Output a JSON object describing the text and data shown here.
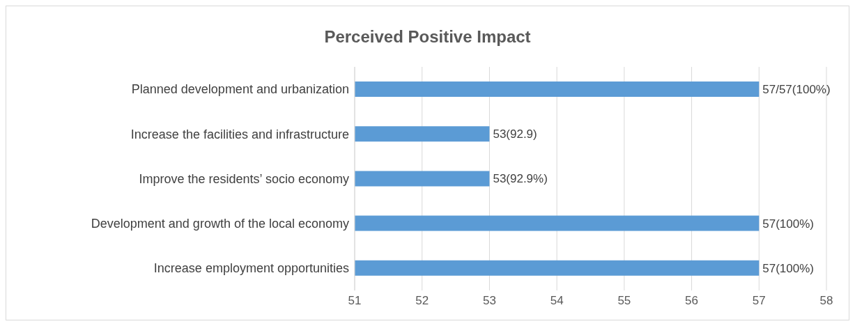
{
  "chart_data": {
    "type": "bar",
    "orientation": "horizontal",
    "title": "Perceived Positive Impact",
    "categories": [
      "Planned development and urbanization",
      "Increase the facilities and infrastructure",
      "Improve the residents’ socio economy",
      "Development and growth of the local economy",
      "Increase employment opportunities"
    ],
    "values": [
      57,
      53,
      53,
      57,
      57
    ],
    "value_labels": [
      "57/57(100%)",
      "53(92.9)",
      "53(92.9%)",
      "57(100%)",
      "57(100%)"
    ],
    "color": "#5b9bd5",
    "xlim": [
      51,
      58
    ],
    "xticks": [
      51,
      52,
      53,
      54,
      55,
      56,
      57,
      58
    ],
    "grid": "x"
  }
}
